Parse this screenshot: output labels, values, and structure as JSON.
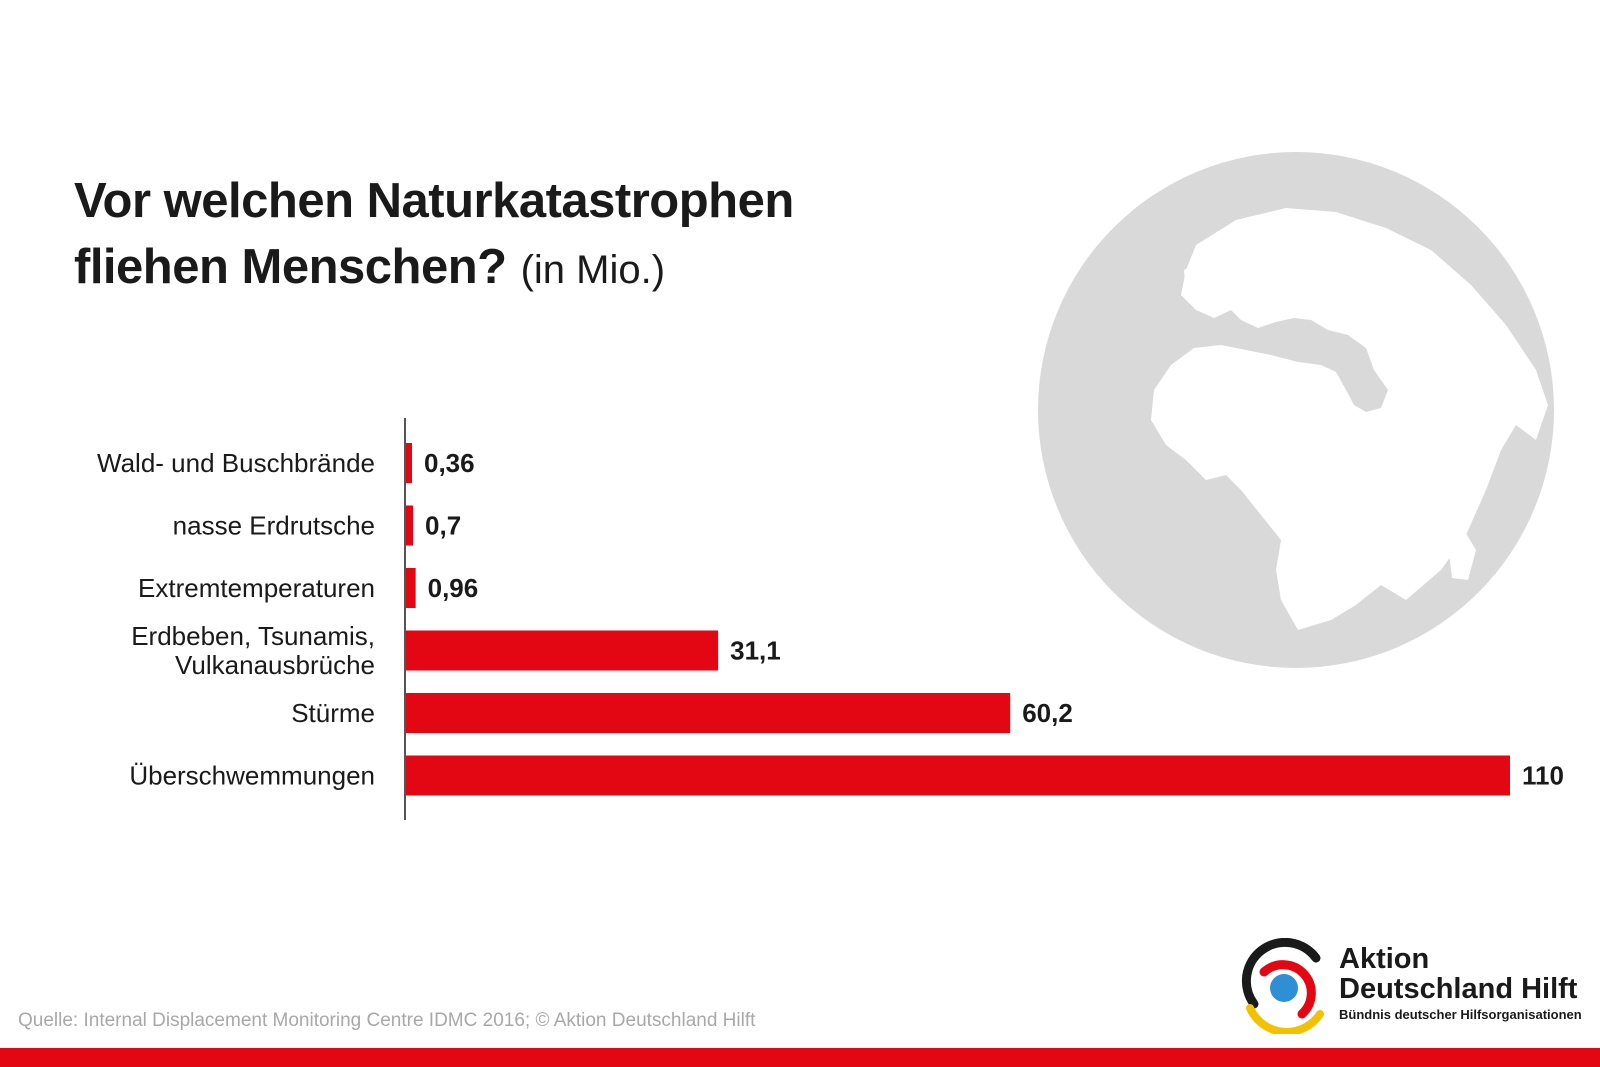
{
  "title_line1": "Vor welchen Naturkatastrophen",
  "title_line2": "fliehen Menschen?",
  "title_unit": "(in Mio.)",
  "source": "Quelle: Internal Displacement Monitoring Centre IDMC 2016; © Aktion Deutschland Hilft",
  "logo": {
    "line1": "Aktion",
    "line2": "Deutschland Hilft",
    "tagline": "Bündnis deutscher Hilfsorganisationen"
  },
  "colors": {
    "bar": "#e30613",
    "globe": "#d9d9d9",
    "footer_bar": "#e30613"
  },
  "chart_data": {
    "type": "bar",
    "orientation": "horizontal",
    "title": "Vor welchen Naturkatastrophen fliehen Menschen? (in Mio.)",
    "unit": "Mio.",
    "xlim": [
      0,
      110
    ],
    "grid": false,
    "categories": [
      [
        "Wald- und Buschbrände"
      ],
      [
        "nasse Erdrutsche"
      ],
      [
        "Extremtemperaturen"
      ],
      [
        "Erdbeben, Tsunamis,",
        "Vulkanausbrüche"
      ],
      [
        "Stürme"
      ],
      [
        "Überschwemmungen"
      ]
    ],
    "values": [
      0.36,
      0.7,
      0.96,
      31.1,
      60.2,
      110
    ],
    "value_labels": [
      "0,36",
      "0,7",
      "0,96",
      "31,1",
      "60,2",
      "110"
    ]
  }
}
